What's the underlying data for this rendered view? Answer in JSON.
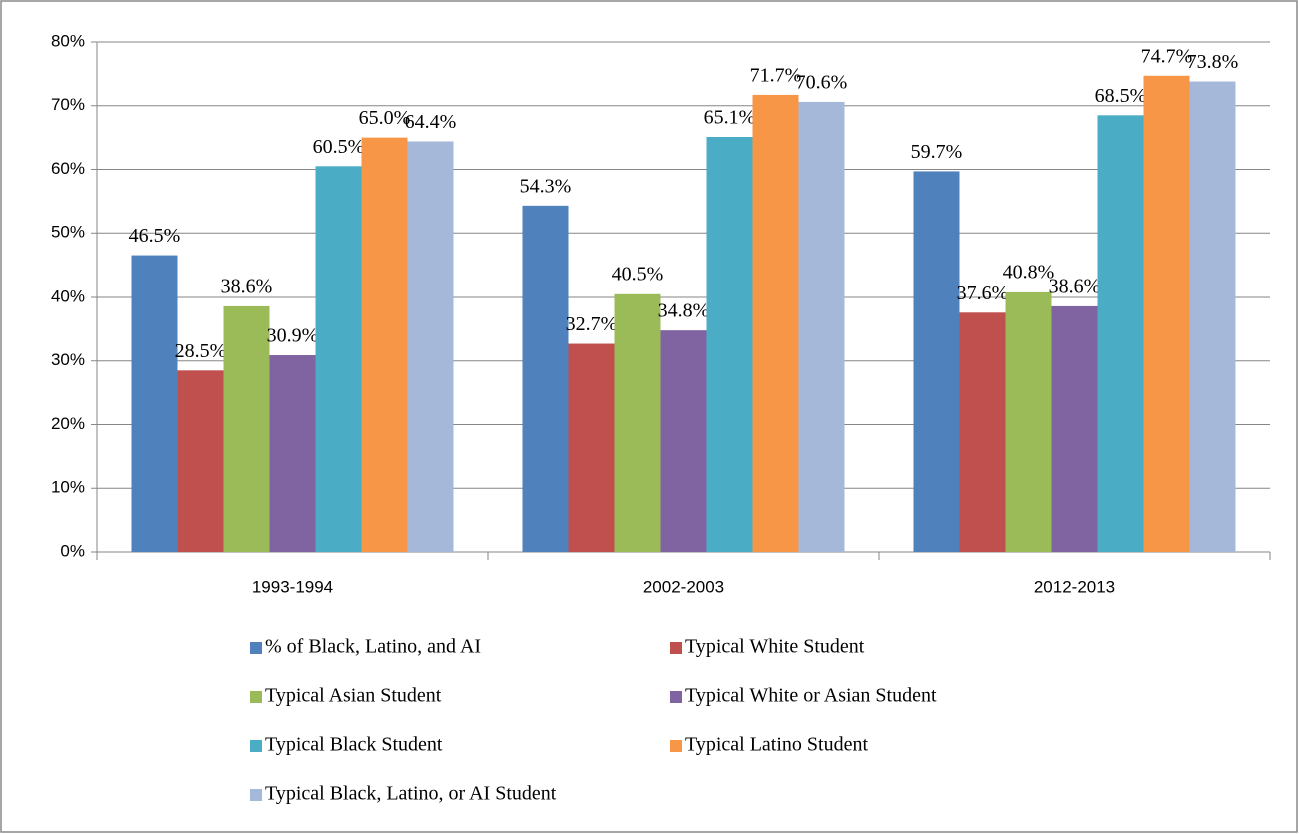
{
  "chart_data": {
    "type": "bar",
    "categories": [
      "1993-1994",
      "2002-2003",
      "2012-2013"
    ],
    "series": [
      {
        "name": "% of Black, Latino, and AI",
        "color": "#4f81bd",
        "values": [
          46.5,
          54.3,
          59.7
        ],
        "value_labels": [
          "46.5%",
          "54.3%",
          "59.7%"
        ]
      },
      {
        "name": "Typical White Student",
        "color": "#c0504d",
        "values": [
          28.5,
          32.7,
          37.6
        ],
        "value_labels": [
          "28.5%",
          "32.7%",
          "37.6%"
        ]
      },
      {
        "name": "Typical Asian Student",
        "color": "#9bbb59",
        "values": [
          38.6,
          40.5,
          40.8
        ],
        "value_labels": [
          "38.6%",
          "40.5%",
          "40.8%"
        ]
      },
      {
        "name": "Typical White or Asian Student",
        "color": "#8064a2",
        "values": [
          30.9,
          34.8,
          38.6
        ],
        "value_labels": [
          "30.9%",
          "34.8%",
          "38.6%"
        ]
      },
      {
        "name": "Typical Black Student",
        "color": "#4bacc6",
        "values": [
          60.5,
          65.1,
          68.5
        ],
        "value_labels": [
          "60.5%",
          "65.1%",
          "68.5%"
        ]
      },
      {
        "name": "Typical Latino Student",
        "color": "#f79646",
        "values": [
          65.0,
          71.7,
          74.7
        ],
        "value_labels": [
          "65.0%",
          "71.7%",
          "74.7%"
        ]
      },
      {
        "name": "Typical Black, Latino, or AI Student",
        "color": "#a5b8da",
        "values": [
          64.4,
          70.6,
          73.8
        ],
        "value_labels": [
          "64.4%",
          "70.6%",
          "73.8%"
        ]
      }
    ],
    "ylim": [
      0,
      80
    ],
    "yticks": [
      {
        "value": 0,
        "label": "0%"
      },
      {
        "value": 10,
        "label": "10%"
      },
      {
        "value": 20,
        "label": "20%"
      },
      {
        "value": 30,
        "label": "30%"
      },
      {
        "value": 40,
        "label": "40%"
      },
      {
        "value": 50,
        "label": "50%"
      },
      {
        "value": 60,
        "label": "60%"
      },
      {
        "value": 70,
        "label": "70%"
      },
      {
        "value": 80,
        "label": "80%"
      }
    ],
    "grid": true,
    "legend": "bottom"
  }
}
